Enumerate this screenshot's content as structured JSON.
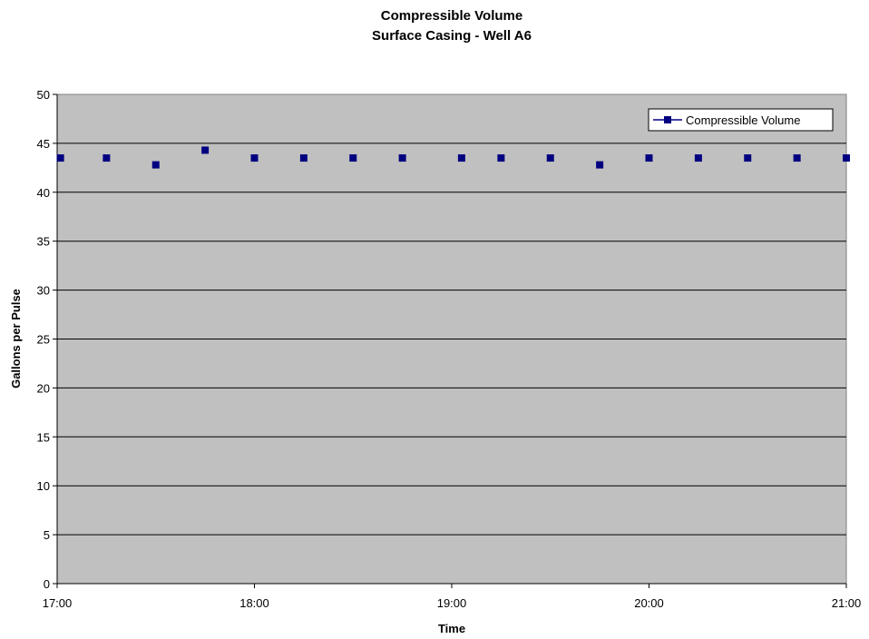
{
  "chart_data": {
    "type": "scatter",
    "title": "Compressible Volume",
    "subtitle": "Surface Casing - Well A6",
    "xlabel": "Time",
    "ylabel": "Gallons per Pulse",
    "xlim": [
      "17:00",
      "21:00"
    ],
    "ylim": [
      0,
      50
    ],
    "x_ticks": [
      "17:00",
      "18:00",
      "19:00",
      "20:00",
      "21:00"
    ],
    "y_ticks": [
      "0",
      "5",
      "10",
      "15",
      "20",
      "25",
      "30",
      "35",
      "40",
      "45",
      "50"
    ],
    "grid": "horizontal",
    "legend_position": "top-right",
    "background_color": "#c0c0c0",
    "series": [
      {
        "name": "Compressible Volume",
        "color": "#000080",
        "marker": "square",
        "points": [
          {
            "x": "17:01",
            "y": 43.5
          },
          {
            "x": "17:15",
            "y": 43.5
          },
          {
            "x": "17:30",
            "y": 42.8
          },
          {
            "x": "17:45",
            "y": 44.3
          },
          {
            "x": "18:00",
            "y": 43.5
          },
          {
            "x": "18:15",
            "y": 43.5
          },
          {
            "x": "18:30",
            "y": 43.5
          },
          {
            "x": "18:45",
            "y": 43.5
          },
          {
            "x": "19:03",
            "y": 43.5
          },
          {
            "x": "19:15",
            "y": 43.5
          },
          {
            "x": "19:30",
            "y": 43.5
          },
          {
            "x": "19:45",
            "y": 42.8
          },
          {
            "x": "20:00",
            "y": 43.5
          },
          {
            "x": "20:15",
            "y": 43.5
          },
          {
            "x": "20:30",
            "y": 43.5
          },
          {
            "x": "20:45",
            "y": 43.5
          },
          {
            "x": "21:00",
            "y": 43.5
          }
        ]
      }
    ]
  }
}
